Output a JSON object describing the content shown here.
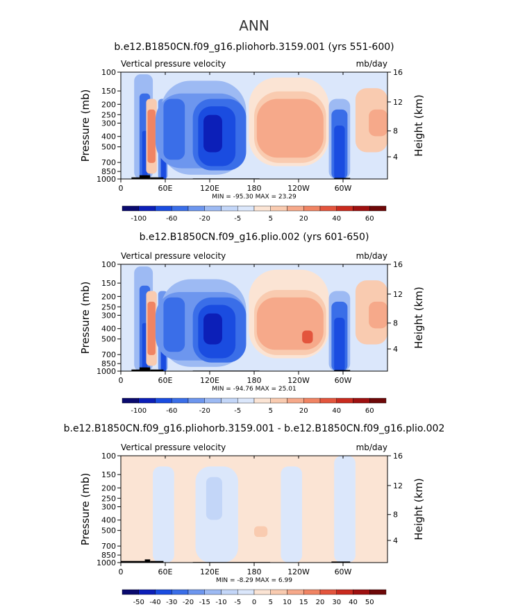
{
  "main_title": "ANN",
  "colors": {
    "blues": [
      "#0a0a6e",
      "#0c1fb8",
      "#1a4ce0",
      "#3a6ee8",
      "#6d96ee",
      "#9dbaf3",
      "#c3d6f8",
      "#dbe7fb"
    ],
    "reds": [
      "#fbe4d4",
      "#f9cbb0",
      "#f6a98a",
      "#f08463",
      "#e3553d",
      "#c92a1e",
      "#9e1010",
      "#6e0808"
    ],
    "ocean_light": "#dbe7fb",
    "land_light": "#fbe4d4"
  },
  "chart_data": [
    {
      "type": "heatmap",
      "title": "b.e12.B1850CN.f09_g16.pliohorb.3159.001 (yrs 551-600)",
      "left_label": "Vertical pressure velocity",
      "right_label": "mb/day",
      "ylabel": "Pressure (mb)",
      "ylabel_right": "Height (km)",
      "x_ticks": [
        "0",
        "60E",
        "120E",
        "180",
        "120W",
        "60W"
      ],
      "y_ticks": [
        "100",
        "150",
        "200",
        "250",
        "300",
        "400",
        "500",
        "700",
        "850",
        "1000"
      ],
      "y_right_ticks": [
        "16",
        "12",
        "8",
        "4"
      ],
      "stats": "MIN =  -95.30   MAX =   23.29",
      "colorbar_labels": [
        "-100",
        "-60",
        "-20",
        "-5",
        "5",
        "20",
        "40",
        "60"
      ],
      "zmin": -95.3,
      "zmax": 23.29
    },
    {
      "type": "heatmap",
      "title": "b.e12.B1850CN.f09_g16.plio.002 (yrs 601-650)",
      "left_label": "Vertical pressure velocity",
      "right_label": "mb/day",
      "ylabel": "Pressure (mb)",
      "ylabel_right": "Height (km)",
      "x_ticks": [
        "0",
        "60E",
        "120E",
        "180",
        "120W",
        "60W"
      ],
      "y_ticks": [
        "100",
        "150",
        "200",
        "250",
        "300",
        "400",
        "500",
        "700",
        "850",
        "1000"
      ],
      "y_right_ticks": [
        "16",
        "12",
        "8",
        "4"
      ],
      "stats": "MIN =  -94.76   MAX =   25.01",
      "colorbar_labels": [
        "-100",
        "-60",
        "-20",
        "-5",
        "5",
        "20",
        "40",
        "60"
      ],
      "zmin": -94.76,
      "zmax": 25.01
    },
    {
      "type": "heatmap",
      "title": "b.e12.B1850CN.f09_g16.pliohorb.3159.001 - b.e12.B1850CN.f09_g16.plio.002",
      "left_label": "Vertical pressure velocity",
      "right_label": "mb/day",
      "ylabel": "Pressure (mb)",
      "ylabel_right": "Height (km)",
      "x_ticks": [
        "0",
        "60E",
        "120E",
        "180",
        "120W",
        "60W"
      ],
      "y_ticks": [
        "100",
        "150",
        "200",
        "250",
        "300",
        "400",
        "500",
        "700",
        "850",
        "1000"
      ],
      "y_right_ticks": [
        "16",
        "12",
        "8",
        "4"
      ],
      "stats": "MIN =   -8.29   MAX =    6.99",
      "colorbar_labels": [
        "-50",
        "-40",
        "-30",
        "-20",
        "-15",
        "-10",
        "-5",
        "0",
        "5",
        "10",
        "15",
        "20",
        "30",
        "40",
        "50"
      ],
      "zmin": -8.29,
      "zmax": 6.99
    }
  ]
}
